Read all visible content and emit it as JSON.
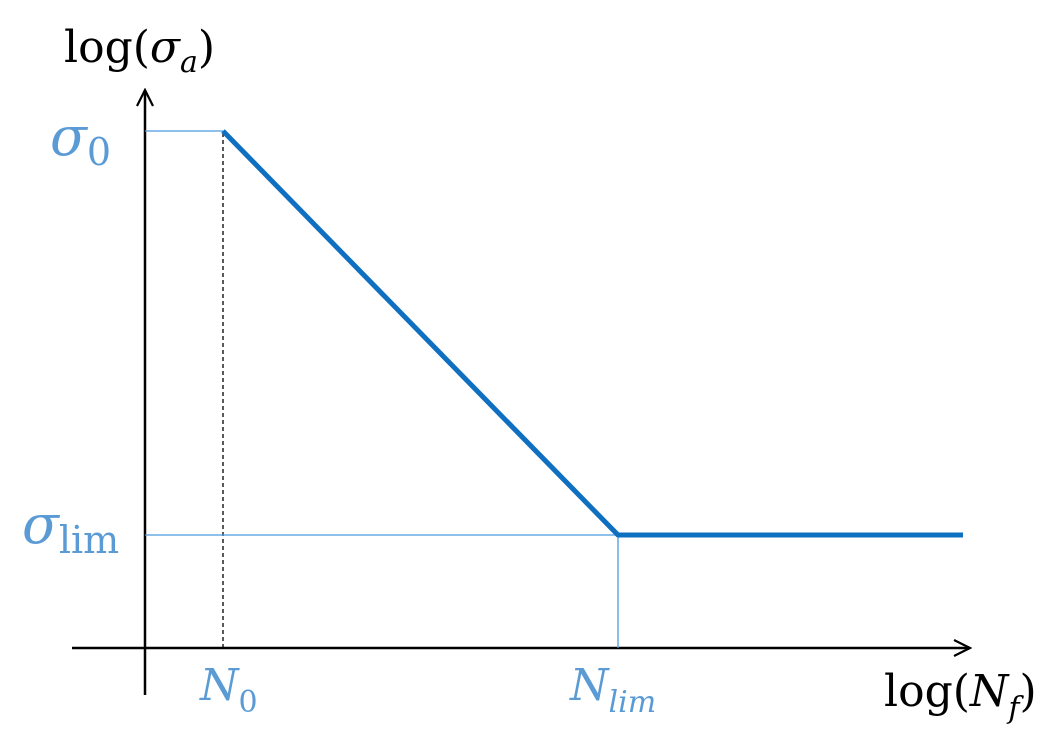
{
  "chart_data": {
    "type": "line",
    "title": "",
    "xlabel": {
      "base": "log(",
      "symbol": "N",
      "subscript": "f",
      "close": ")"
    },
    "ylabel": {
      "base": "log(",
      "symbol": "σ",
      "subscript": "a",
      "close": ")"
    },
    "x_scale": "log",
    "y_scale": "log",
    "grid": false,
    "legend": "none",
    "x_ticks": [
      {
        "symbol": "N",
        "subscript": "0"
      },
      {
        "symbol": "N",
        "subscript": "lim"
      }
    ],
    "y_ticks": [
      {
        "symbol": "σ",
        "subscript": "0"
      },
      {
        "symbol": "σ",
        "subscript": "lim"
      }
    ],
    "series": [
      {
        "points": [
          {
            "x": "N_0",
            "y": "σ_0"
          },
          {
            "x": "N_lim",
            "y": "σ_lim"
          },
          {
            "x": "beyond N_lim",
            "y": "σ_lim"
          }
        ]
      }
    ],
    "guides": [
      {
        "kind": "horizontal",
        "at": "σ_0",
        "from": "axis",
        "to": "N_0",
        "style": "solid"
      },
      {
        "kind": "vertical",
        "at": "N_0",
        "from": "axis",
        "to": "σ_0",
        "style": "dashed"
      },
      {
        "kind": "horizontal",
        "at": "σ_lim",
        "from": "axis",
        "to": "N_lim",
        "style": "solid"
      },
      {
        "kind": "vertical",
        "at": "N_lim",
        "from": "axis",
        "to": "σ_lim",
        "style": "solid"
      }
    ],
    "colors": {
      "curve": "#0f6fc0",
      "guide": "#4a9be0",
      "label": "#5b9bd5",
      "axis": "#000000",
      "dashed_guide": "#000000"
    }
  }
}
